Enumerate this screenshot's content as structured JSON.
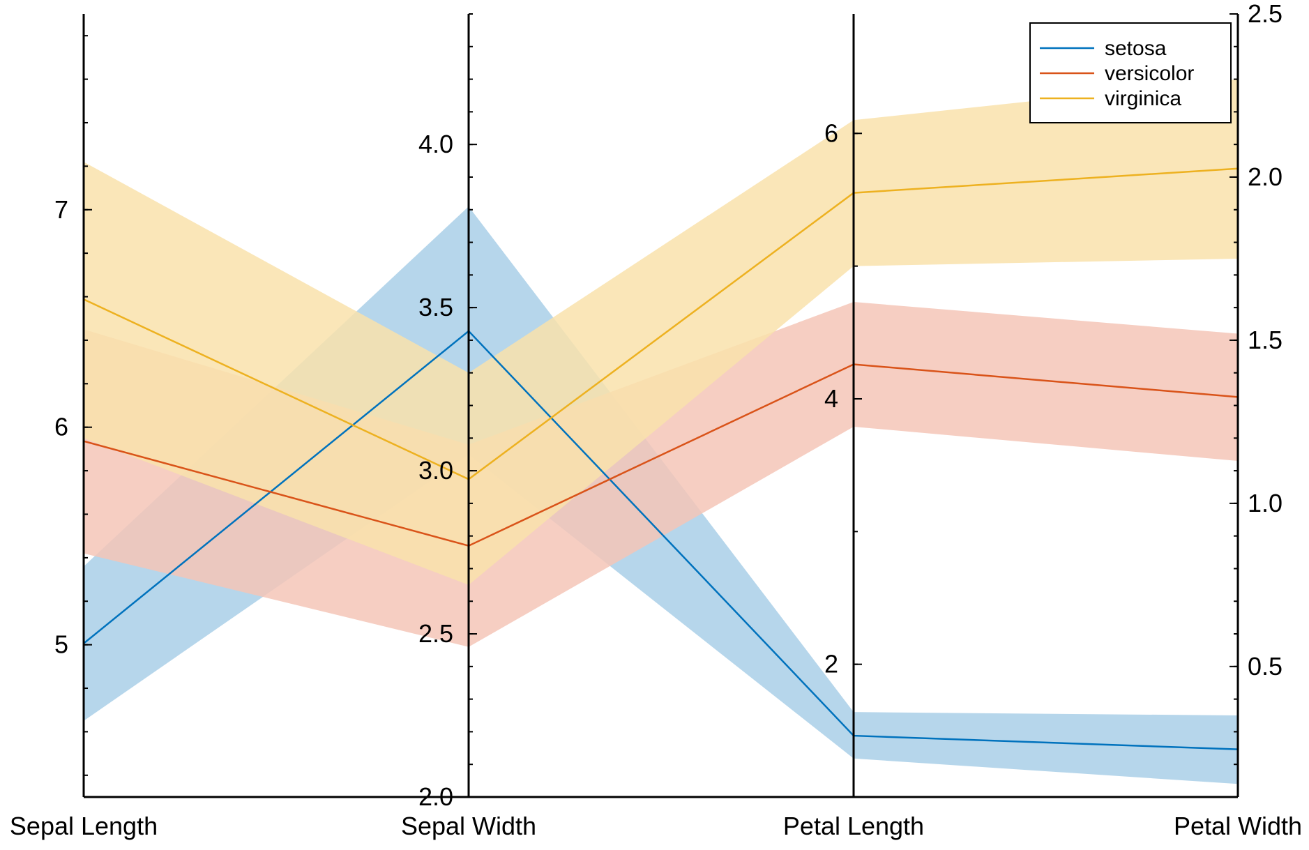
{
  "chart_data": {
    "type": "line",
    "subtype": "parallel-coordinates",
    "title": "",
    "grid": false,
    "legend_placement": "top-right",
    "axes": [
      {
        "name": "Sepal Length",
        "range": [
          4.3,
          7.9
        ],
        "ticks": [
          5,
          6,
          7
        ],
        "tick_labels": [
          "5",
          "6",
          "7"
        ],
        "minor_step": 0.2,
        "label_side": "left"
      },
      {
        "name": "Sepal Width",
        "range": [
          2.0,
          4.4
        ],
        "ticks": [
          2.0,
          2.5,
          3.0,
          3.5,
          4.0
        ],
        "tick_labels": [
          "2.0",
          "2.5",
          "3.0",
          "3.5",
          "4.0"
        ],
        "minor_step": 0.1,
        "label_side": "left"
      },
      {
        "name": "Petal Length",
        "range": [
          1.0,
          6.9
        ],
        "ticks": [
          2,
          4,
          6
        ],
        "tick_labels": [
          "2",
          "4",
          "6"
        ],
        "minor_step": 1.0,
        "label_side": "left"
      },
      {
        "name": "Petal Width",
        "range": [
          0.1,
          2.5
        ],
        "ticks": [
          0.5,
          1.0,
          1.5,
          2.0,
          2.5
        ],
        "tick_labels": [
          "0.5",
          "1.0",
          "1.5",
          "2.0",
          "2.5"
        ],
        "minor_step": 0.1,
        "label_side": "right"
      }
    ],
    "series": [
      {
        "name": "setosa",
        "color": "#0072BD",
        "band_color": "#a9cfe8",
        "mean": [
          5.006,
          3.428,
          1.462,
          0.246
        ],
        "lower": [
          4.65,
          3.05,
          1.29,
          0.14
        ],
        "upper": [
          5.36,
          3.81,
          1.64,
          0.35
        ]
      },
      {
        "name": "versicolor",
        "color": "#D95319",
        "band_color": "#f4c6b7",
        "mean": [
          5.936,
          2.77,
          4.26,
          1.326
        ],
        "lower": [
          5.42,
          2.46,
          3.79,
          1.13
        ],
        "upper": [
          6.45,
          3.08,
          4.73,
          1.52
        ]
      },
      {
        "name": "virginica",
        "color": "#EDB120",
        "band_color": "#f9e2ac",
        "mean": [
          6.588,
          2.974,
          5.552,
          2.026
        ],
        "lower": [
          5.95,
          2.65,
          5.0,
          1.75
        ],
        "upper": [
          7.22,
          3.3,
          6.1,
          2.3
        ]
      }
    ]
  }
}
